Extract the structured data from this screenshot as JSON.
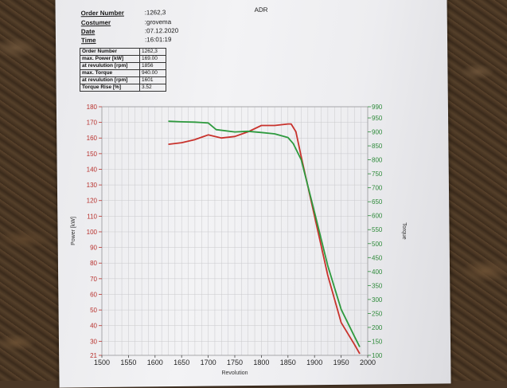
{
  "header": {
    "order_number_label": "Order Number",
    "order_number_value": ":1262,3",
    "doc_code": "ADR",
    "customer_label": "Costumer",
    "customer_value": ":grovema",
    "date_label": "Date",
    "date_value": ":07.12.2020",
    "time_label": "Time",
    "time_value": ":16:01:19"
  },
  "summary": [
    {
      "label": "Order Number",
      "value": "1262,3"
    },
    {
      "label": "max. Power [kW]",
      "value": "169.00"
    },
    {
      "label": "at revulution [rpm]",
      "value": "1856"
    },
    {
      "label": "max. Torque",
      "value": "940.00"
    },
    {
      "label": "at revulution [rpm]",
      "value": "1601"
    },
    {
      "label": "Torque Rise [%]",
      "value": "3.52"
    }
  ],
  "chart_data": {
    "type": "line",
    "title": "",
    "xlabel": "Revolution",
    "ylabel_left": "Power [kW]",
    "ylabel_right": "Torque",
    "xlim": [
      1500,
      2000
    ],
    "ylim_left": [
      21,
      180
    ],
    "ylim_right": [
      100,
      990
    ],
    "x_ticks": [
      1500,
      1550,
      1600,
      1650,
      1700,
      1750,
      1800,
      1850,
      1900,
      1950,
      2000
    ],
    "y_left_ticks": [
      21,
      30,
      40,
      50,
      60,
      70,
      80,
      90,
      100,
      110,
      120,
      130,
      140,
      150,
      160,
      170,
      180
    ],
    "y_right_ticks": [
      100,
      150,
      200,
      250,
      300,
      350,
      400,
      450,
      500,
      550,
      600,
      650,
      700,
      750,
      800,
      850,
      900,
      950,
      990
    ],
    "grid": true,
    "series": [
      {
        "name": "Power",
        "axis": "left",
        "color": "#c8322c",
        "x": [
          1625,
          1650,
          1675,
          1700,
          1725,
          1750,
          1775,
          1800,
          1825,
          1850,
          1856,
          1865,
          1875,
          1900,
          1925,
          1950,
          1975,
          1985
        ],
        "y": [
          156,
          157,
          159,
          162,
          160,
          161,
          164,
          168,
          168,
          169,
          169,
          164,
          148,
          110,
          72,
          42,
          28,
          22
        ]
      },
      {
        "name": "Torque",
        "axis": "right",
        "color": "#2e9a3e",
        "x": [
          1625,
          1650,
          1675,
          1700,
          1715,
          1750,
          1775,
          1800,
          1825,
          1850,
          1860,
          1875,
          1900,
          1925,
          1950,
          1975,
          1985
        ],
        "y": [
          938,
          936,
          935,
          932,
          908,
          900,
          902,
          898,
          893,
          880,
          858,
          800,
          612,
          420,
          265,
          168,
          130
        ]
      }
    ]
  }
}
